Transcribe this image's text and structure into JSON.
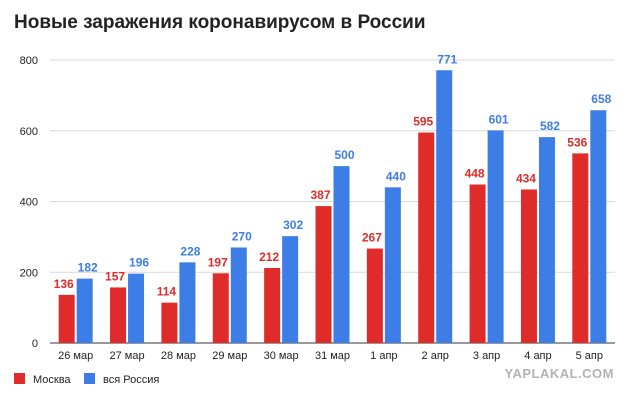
{
  "header": {
    "title": "Новые заражения коронавирусом в России"
  },
  "watermark": "YAPLAKAL.COM",
  "chart_data": {
    "type": "bar",
    "title": "Новые заражения коронавирусом в России",
    "categories": [
      "26 мар",
      "27 мар",
      "28 мар",
      "29 мар",
      "30 мар",
      "31 мар",
      "1 апр",
      "2 апр",
      "3 апр",
      "4 апр",
      "5 апр"
    ],
    "series": [
      {
        "name": "Москва",
        "color": "#e02b2b",
        "values": [
          136,
          157,
          114,
          197,
          212,
          387,
          267,
          595,
          448,
          434,
          536
        ]
      },
      {
        "name": "вся Россия",
        "color": "#3d7ee6",
        "values": [
          182,
          196,
          228,
          270,
          302,
          500,
          440,
          771,
          601,
          582,
          658
        ]
      }
    ],
    "yticks": [
      "0",
      "200",
      "400",
      "600",
      "800"
    ],
    "ylim": [
      0,
      800
    ],
    "grid": true,
    "legend_position": "bottom-left"
  }
}
